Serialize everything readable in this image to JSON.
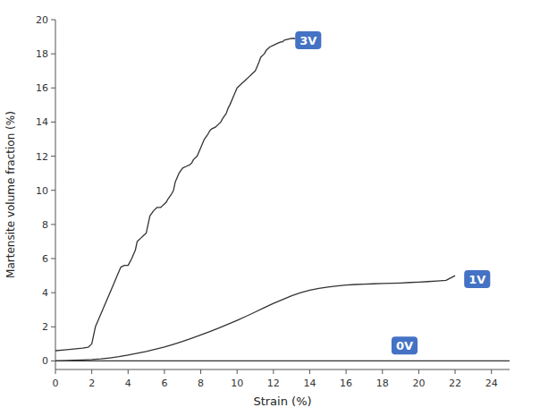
{
  "chart_data": {
    "type": "line",
    "xlabel": "Strain (%)",
    "ylabel": "Martensite volume fraction (%)",
    "xlim": [
      0,
      25
    ],
    "ylim": [
      -0.5,
      20
    ],
    "xticks": [
      0,
      2,
      4,
      6,
      8,
      10,
      12,
      14,
      16,
      18,
      20,
      22,
      24
    ],
    "yticks": [
      0,
      2,
      4,
      6,
      8,
      10,
      12,
      14,
      16,
      18,
      20
    ],
    "grid": false,
    "series": [
      {
        "color": "#333333",
        "x": [
          0,
          0.5,
          1.0,
          1.5,
          1.8,
          2.0,
          2.1,
          2.2,
          2.4,
          2.6,
          2.8,
          3.0,
          3.2,
          3.4,
          3.6,
          3.8,
          4.0,
          4.1,
          4.2,
          4.4,
          4.5,
          4.6,
          4.7,
          4.8,
          5.0,
          5.1,
          5.2,
          5.4,
          5.6,
          5.8,
          5.9,
          6.0,
          6.1,
          6.2,
          6.4,
          6.5,
          6.6,
          6.8,
          7.0,
          7.2,
          7.4,
          7.5,
          7.6,
          7.8,
          8.0,
          8.2,
          8.4,
          8.5,
          8.6,
          8.8,
          9.0,
          9.1,
          9.2,
          9.4,
          9.5,
          9.6,
          9.8,
          10.0,
          10.2,
          10.3,
          10.4,
          10.5,
          10.6,
          10.8,
          11.0,
          11.2,
          11.3,
          11.5,
          11.6,
          11.8,
          12.0,
          12.2,
          12.4,
          12.5,
          12.6,
          12.8,
          13.0,
          13.2
        ],
        "values": [
          0.6,
          0.65,
          0.7,
          0.75,
          0.8,
          1.0,
          1.5,
          2.0,
          2.5,
          3.0,
          3.5,
          4.0,
          4.5,
          5.0,
          5.5,
          5.6,
          5.6,
          5.8,
          6.0,
          6.5,
          7.0,
          7.1,
          7.2,
          7.3,
          7.5,
          8.0,
          8.5,
          8.8,
          9.0,
          9.0,
          9.1,
          9.2,
          9.3,
          9.5,
          9.8,
          10.0,
          10.5,
          11.0,
          11.3,
          11.4,
          11.5,
          11.6,
          11.8,
          12.0,
          12.5,
          13.0,
          13.3,
          13.5,
          13.6,
          13.7,
          13.9,
          14.0,
          14.2,
          14.5,
          14.8,
          15.0,
          15.5,
          16.0,
          16.2,
          16.3,
          16.4,
          16.5,
          16.6,
          16.8,
          17.0,
          17.5,
          17.8,
          18.0,
          18.2,
          18.4,
          18.5,
          18.6,
          18.7,
          18.7,
          18.8,
          18.85,
          18.9,
          18.9
        ]
      },
      {
        "color": "#333333",
        "x": [
          0,
          0.5,
          1.0,
          1.5,
          2.0,
          2.5,
          3.0,
          3.5,
          4.0,
          4.5,
          5.0,
          5.5,
          6.0,
          6.5,
          7.0,
          7.5,
          8.0,
          8.5,
          9.0,
          9.5,
          10.0,
          10.5,
          11.0,
          11.5,
          12.0,
          12.5,
          13.0,
          13.5,
          14.0,
          14.5,
          15.0,
          15.5,
          16.0,
          16.5,
          17.0,
          17.5,
          18.0,
          18.5,
          19.0,
          19.5,
          20.0,
          20.5,
          21.0,
          21.5,
          22.0
        ],
        "values": [
          0.0,
          0.02,
          0.04,
          0.06,
          0.08,
          0.12,
          0.18,
          0.25,
          0.35,
          0.45,
          0.55,
          0.68,
          0.82,
          0.98,
          1.15,
          1.33,
          1.52,
          1.72,
          1.93,
          2.15,
          2.38,
          2.62,
          2.87,
          3.12,
          3.37,
          3.6,
          3.82,
          4.0,
          4.15,
          4.25,
          4.33,
          4.4,
          4.45,
          4.48,
          4.5,
          4.52,
          4.54,
          4.55,
          4.57,
          4.6,
          4.62,
          4.65,
          4.68,
          4.72,
          5.0
        ]
      },
      {
        "color": "#333333",
        "x": [
          0,
          1.0,
          2.0,
          3.0,
          4.0,
          5.0,
          6.0,
          7.0,
          8.0,
          9.0,
          10.0,
          11.0,
          12.0,
          13.0,
          14.0,
          15.0,
          16.0,
          17.0,
          18.0,
          19.0,
          20.0,
          21.0,
          22.0,
          23.0,
          24.0,
          25.0
        ],
        "values": [
          0.0,
          0.0,
          0.0,
          0.0,
          0.0,
          0.0,
          0.0,
          0.0,
          0.0,
          0.0,
          0.0,
          0.0,
          0.0,
          0.0,
          0.0,
          0.0,
          0.0,
          0.0,
          0.0,
          0.0,
          0.0,
          0.0,
          0.0,
          0.0,
          0.0,
          0.0
        ]
      }
    ],
    "annotations": [
      {
        "text": "3V",
        "x": 13.2,
        "y": 18.8,
        "color": "#4472C4"
      },
      {
        "text": "1V",
        "x": 22.5,
        "y": 4.8,
        "color": "#4472C4"
      },
      {
        "text": "0V",
        "x": 18.5,
        "y": 0.9,
        "color": "#4472C4"
      }
    ]
  }
}
